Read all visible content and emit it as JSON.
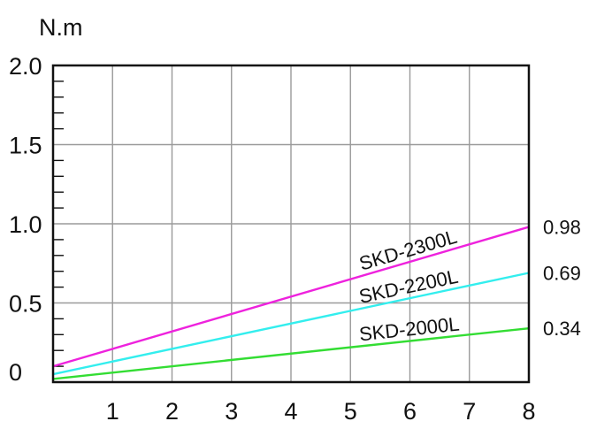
{
  "chart_data": {
    "type": "line",
    "title": "",
    "xlabel": "",
    "ylabel": "N.m",
    "xlim": [
      0,
      8
    ],
    "ylim": [
      0,
      2.0
    ],
    "x_ticks": [
      "1",
      "2",
      "3",
      "4",
      "5",
      "6",
      "7",
      "8"
    ],
    "y_ticks": [
      {
        "value": 0,
        "label": "0"
      },
      {
        "value": 0.5,
        "label": "0.5"
      },
      {
        "value": 1.0,
        "label": "1.0"
      },
      {
        "value": 1.5,
        "label": "1.5"
      },
      {
        "value": 2.0,
        "label": "2.0"
      }
    ],
    "grid": true,
    "series": [
      {
        "name": "SKD-2300L",
        "color": "#ee22dd",
        "x": [
          0,
          8
        ],
        "y": [
          0.1,
          0.98
        ],
        "end_label": "0.98"
      },
      {
        "name": "SKD-2200L",
        "color": "#33eeee",
        "x": [
          0,
          8
        ],
        "y": [
          0.05,
          0.69
        ],
        "end_label": "0.69"
      },
      {
        "name": "SKD-2000L",
        "color": "#33dd33",
        "x": [
          0,
          8
        ],
        "y": [
          0.02,
          0.34
        ],
        "end_label": "0.34"
      }
    ]
  }
}
